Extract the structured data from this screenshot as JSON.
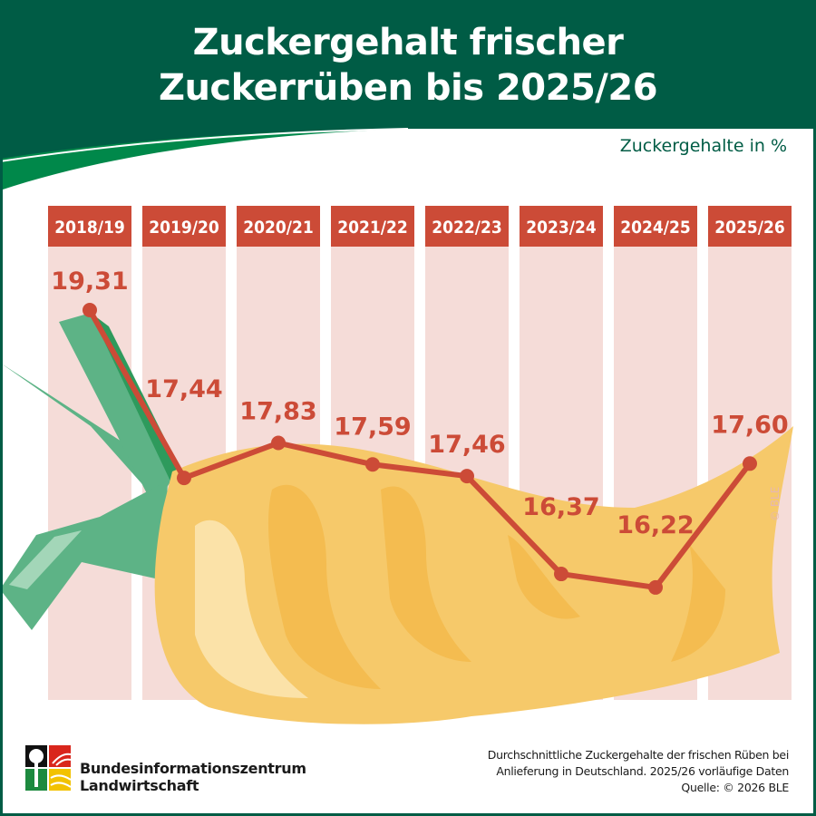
{
  "title_line1": "Zuckergehalt frischer",
  "title_line2": "Zuckerrüben bis 2025/26",
  "unit_label": "Zuckergehalte in %",
  "copyright_mark": "© BLE",
  "logo": {
    "line1": "Bundesinformationszentrum",
    "line2": "Landwirtschaft"
  },
  "footnote": {
    "line1": "Durchschnittliche Zuckergehalte der frischen Rüben bei",
    "line2": "Anlieferung in Deutschland. 2025/26 vorläufige Daten",
    "line3": "Quelle: © 2026 BLE"
  },
  "colors": {
    "header": "#005c45",
    "swoosh": "#00884a",
    "series": "#cc4b37",
    "column": "#f5dcd8",
    "beet": "#f6c96a",
    "leaves": "#5db386"
  },
  "chart_data": {
    "type": "line",
    "title": "Zuckergehalt frischer Zuckerrüben bis 2025/26",
    "ylabel": "Zuckergehalte in %",
    "categories": [
      "2018/19",
      "2019/20",
      "2020/21",
      "2021/22",
      "2022/23",
      "2023/24",
      "2024/25",
      "2025/26"
    ],
    "values": [
      19.31,
      17.44,
      17.83,
      17.59,
      17.46,
      16.37,
      16.22,
      17.6
    ],
    "value_labels": [
      "19,31",
      "17,44",
      "17,83",
      "17,59",
      "17,46",
      "16,37",
      "16,22",
      "17,60"
    ],
    "grid": false,
    "legend": "none"
  }
}
